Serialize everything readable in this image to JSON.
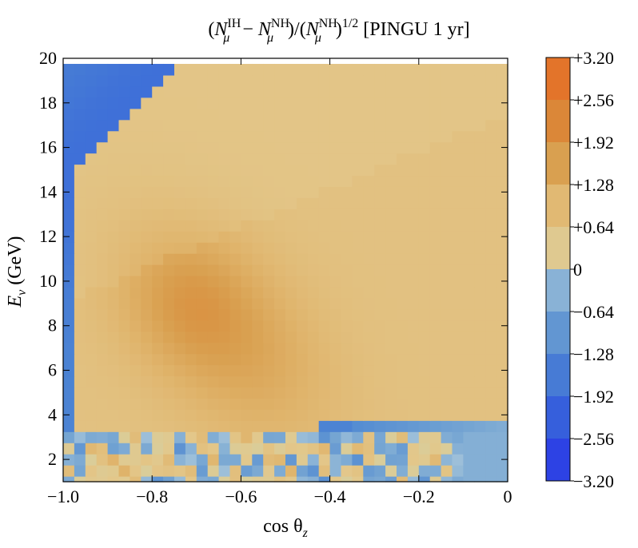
{
  "chart_data": {
    "type": "heatmap",
    "title": "(N_μ^IH − N_μ^NH)/(N_μ^NH)^1/2 [PINGU 1 yr]",
    "title_parts": {
      "open": "(",
      "n1": "N",
      "mu1": "μ",
      "sup1": "IH",
      "minus": " − ",
      "n2": "N",
      "mu2": "μ",
      "sup2": "NH",
      "mid": ")/(",
      "n3": "N",
      "mu3": "μ",
      "sup3": "NH",
      "close": ")",
      "power": "1/2",
      "suffix": " [PINGU 1 yr]"
    },
    "xlabel": "cos θ_z",
    "xlabel_parts": {
      "main": "cos θ",
      "sub": "z"
    },
    "ylabel": "E_ν (GeV)",
    "ylabel_parts": {
      "main": "E",
      "sub": "ν",
      "unit": " (GeV)"
    },
    "xlim": [
      -1.0,
      0.0
    ],
    "ylim": [
      1,
      20
    ],
    "x_tick_values": [
      -1.0,
      -0.8,
      -0.6,
      -0.4,
      -0.2,
      0
    ],
    "x_tick_labels": [
      "−1.0",
      "−0.8",
      "−0.6",
      "−0.4",
      "−0.2",
      "0"
    ],
    "y_tick_values": [
      2,
      4,
      6,
      8,
      10,
      12,
      14,
      16,
      18,
      20
    ],
    "y_tick_labels": [
      "2",
      "4",
      "6",
      "8",
      "10",
      "12",
      "14",
      "16",
      "18",
      "20"
    ],
    "n_cos_bins": 40,
    "n_energy_bins": 38,
    "energy_bin_width_gev": 0.5,
    "colorbar": {
      "min": -3.2,
      "max": 3.2,
      "step": 0.64,
      "labels": [
        "+3.20",
        "+2.56",
        "+1.92",
        "+1.28",
        "+0.64",
        "0",
        "−0.64",
        "−1.28",
        "−1.92",
        "−2.56",
        "−3.20"
      ],
      "label_values": [
        3.2,
        2.56,
        1.92,
        1.28,
        0.64,
        0,
        -0.64,
        -1.28,
        -1.92,
        -2.56,
        -3.2
      ],
      "positive_colors": [
        "#d9cd9a",
        "#e3c78a",
        "#e0b56d",
        "#d9a050",
        "#da8a3a",
        "#e07a30",
        "#e86b22"
      ],
      "negative_colors": [
        "#9ec0d9",
        "#74a4d2",
        "#4f88d2",
        "#3e6fd8",
        "#2f50e0",
        "#2a34e8"
      ]
    },
    "colors": {
      "frame": "#000000",
      "plot_background": "#e6dfd0"
    }
  }
}
